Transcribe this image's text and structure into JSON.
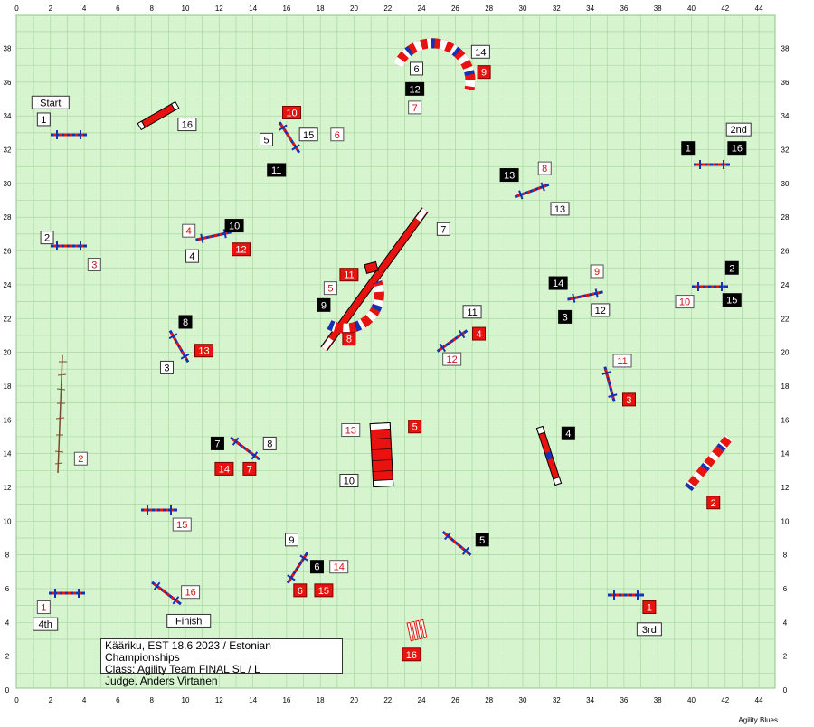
{
  "course": {
    "info_lines": [
      "Kääriku, EST 18.6 2023 / Estonian Championships",
      "Class: Agility Team FINAL SL / L",
      "Judge. Anders Virtanen"
    ],
    "credit": "Agility Blues",
    "x_ticks": [
      0,
      2,
      4,
      6,
      8,
      10,
      12,
      14,
      16,
      18,
      20,
      22,
      24,
      26,
      28,
      30,
      32,
      34,
      36,
      38,
      40,
      42,
      44
    ],
    "y_ticks": [
      0,
      2,
      4,
      6,
      8,
      10,
      12,
      14,
      16,
      18,
      20,
      22,
      24,
      26,
      28,
      30,
      32,
      34,
      36,
      38
    ],
    "colors": {
      "field": "#d6f5cf",
      "grid": "#a9d7a1",
      "label_white_bg": "#ffffff",
      "label_black_bg": "#000000",
      "label_red_bg": "#e8120e",
      "label_red_text": "#d01010",
      "pole": "#1432b4",
      "obstacle_red": "#e8120e"
    }
  },
  "markers": [
    {
      "text": "Start",
      "style": "plain",
      "x": 2,
      "y": 34.8
    },
    {
      "text": "Finish",
      "style": "plain",
      "x": 10.2,
      "y": 4.1
    },
    {
      "text": "2nd",
      "style": "plain",
      "x": 42.8,
      "y": 33.2
    },
    {
      "text": "3rd",
      "style": "plain",
      "x": 37.5,
      "y": 3.6
    },
    {
      "text": "4th",
      "style": "plain",
      "x": 1.7,
      "y": 3.9
    }
  ],
  "numbers": [
    {
      "text": "1",
      "style": "white",
      "x": 1.6,
      "y": 33.8
    },
    {
      "text": "16",
      "style": "white",
      "x": 10.1,
      "y": 33.5
    },
    {
      "text": "10",
      "style": "red",
      "x": 16.3,
      "y": 34.2
    },
    {
      "text": "5",
      "style": "white",
      "x": 14.8,
      "y": 32.6
    },
    {
      "text": "15",
      "style": "white",
      "x": 17.3,
      "y": 32.9
    },
    {
      "text": "6",
      "style": "whitered",
      "x": 19,
      "y": 32.9
    },
    {
      "text": "11",
      "style": "black",
      "x": 15.4,
      "y": 30.8
    },
    {
      "text": "6",
      "style": "white",
      "x": 23.7,
      "y": 36.8
    },
    {
      "text": "14",
      "style": "white",
      "x": 27.5,
      "y": 37.8
    },
    {
      "text": "9",
      "style": "red",
      "x": 27.7,
      "y": 36.6
    },
    {
      "text": "12",
      "style": "black",
      "x": 23.6,
      "y": 35.6
    },
    {
      "text": "7",
      "style": "whitered",
      "x": 23.6,
      "y": 34.5
    },
    {
      "text": "2",
      "style": "white",
      "x": 1.8,
      "y": 26.8
    },
    {
      "text": "3",
      "style": "whitered",
      "x": 4.6,
      "y": 25.2
    },
    {
      "text": "10",
      "style": "black",
      "x": 12.9,
      "y": 27.5
    },
    {
      "text": "4",
      "style": "whitered",
      "x": 10.2,
      "y": 27.2
    },
    {
      "text": "12",
      "style": "red",
      "x": 13.3,
      "y": 26.1
    },
    {
      "text": "4",
      "style": "white",
      "x": 10.4,
      "y": 25.7
    },
    {
      "text": "7",
      "style": "white",
      "x": 25.3,
      "y": 27.3
    },
    {
      "text": "13",
      "style": "black",
      "x": 29.2,
      "y": 30.5
    },
    {
      "text": "8",
      "style": "whitered",
      "x": 31.3,
      "y": 30.9
    },
    {
      "text": "13",
      "style": "white",
      "x": 32.2,
      "y": 28.5
    },
    {
      "text": "1",
      "style": "black",
      "x": 39.8,
      "y": 32.1
    },
    {
      "text": "16",
      "style": "black",
      "x": 42.7,
      "y": 32.1
    },
    {
      "text": "11",
      "style": "red",
      "x": 19.7,
      "y": 24.6
    },
    {
      "text": "5",
      "style": "whitered",
      "x": 18.6,
      "y": 23.8
    },
    {
      "text": "9",
      "style": "black",
      "x": 18.2,
      "y": 22.8
    },
    {
      "text": "8",
      "style": "red",
      "x": 19.7,
      "y": 20.8
    },
    {
      "text": "11",
      "style": "white",
      "x": 27,
      "y": 22.4
    },
    {
      "text": "4",
      "style": "red",
      "x": 27.4,
      "y": 21.1
    },
    {
      "text": "12",
      "style": "whitered",
      "x": 25.8,
      "y": 19.6
    },
    {
      "text": "14",
      "style": "black",
      "x": 32.1,
      "y": 24.1
    },
    {
      "text": "9",
      "style": "whitered",
      "x": 34.4,
      "y": 24.8
    },
    {
      "text": "3",
      "style": "black",
      "x": 32.5,
      "y": 22.1
    },
    {
      "text": "12",
      "style": "white",
      "x": 34.6,
      "y": 22.5
    },
    {
      "text": "2",
      "style": "black",
      "x": 42.4,
      "y": 25
    },
    {
      "text": "10",
      "style": "whitered",
      "x": 39.6,
      "y": 23
    },
    {
      "text": "15",
      "style": "black",
      "x": 42.4,
      "y": 23.1
    },
    {
      "text": "8",
      "style": "black",
      "x": 10,
      "y": 21.8
    },
    {
      "text": "13",
      "style": "red",
      "x": 11.1,
      "y": 20.1
    },
    {
      "text": "3",
      "style": "white",
      "x": 8.9,
      "y": 19.1
    },
    {
      "text": "11",
      "style": "whitered",
      "x": 35.9,
      "y": 19.5
    },
    {
      "text": "3",
      "style": "red",
      "x": 36.3,
      "y": 17.2
    },
    {
      "text": "2",
      "style": "whitered",
      "x": 3.8,
      "y": 13.7
    },
    {
      "text": "13",
      "style": "whitered",
      "x": 19.8,
      "y": 15.4
    },
    {
      "text": "5",
      "style": "red",
      "x": 23.6,
      "y": 15.6
    },
    {
      "text": "10",
      "style": "white",
      "x": 19.7,
      "y": 12.4
    },
    {
      "text": "4",
      "style": "black",
      "x": 32.7,
      "y": 15.2
    },
    {
      "text": "7",
      "style": "black",
      "x": 11.9,
      "y": 14.6
    },
    {
      "text": "8",
      "style": "white",
      "x": 15,
      "y": 14.6
    },
    {
      "text": "14",
      "style": "red",
      "x": 12.3,
      "y": 13.1
    },
    {
      "text": "7",
      "style": "red",
      "x": 13.8,
      "y": 13.1
    },
    {
      "text": "2",
      "style": "red",
      "x": 41.3,
      "y": 11.1
    },
    {
      "text": "15",
      "style": "whitered",
      "x": 9.8,
      "y": 9.8
    },
    {
      "text": "9",
      "style": "white",
      "x": 16.3,
      "y": 8.9
    },
    {
      "text": "5",
      "style": "black",
      "x": 27.6,
      "y": 8.9
    },
    {
      "text": "6",
      "style": "black",
      "x": 17.8,
      "y": 7.3
    },
    {
      "text": "14",
      "style": "whitered",
      "x": 19.1,
      "y": 7.3
    },
    {
      "text": "6",
      "style": "red",
      "x": 16.8,
      "y": 5.9
    },
    {
      "text": "15",
      "style": "red",
      "x": 18.2,
      "y": 5.9
    },
    {
      "text": "16",
      "style": "whitered",
      "x": 10.3,
      "y": 5.8
    },
    {
      "text": "1",
      "style": "whitered",
      "x": 1.6,
      "y": 4.9
    },
    {
      "text": "1",
      "style": "red",
      "x": 37.5,
      "y": 4.9
    },
    {
      "text": "16",
      "style": "red",
      "x": 23.4,
      "y": 2.1
    }
  ]
}
